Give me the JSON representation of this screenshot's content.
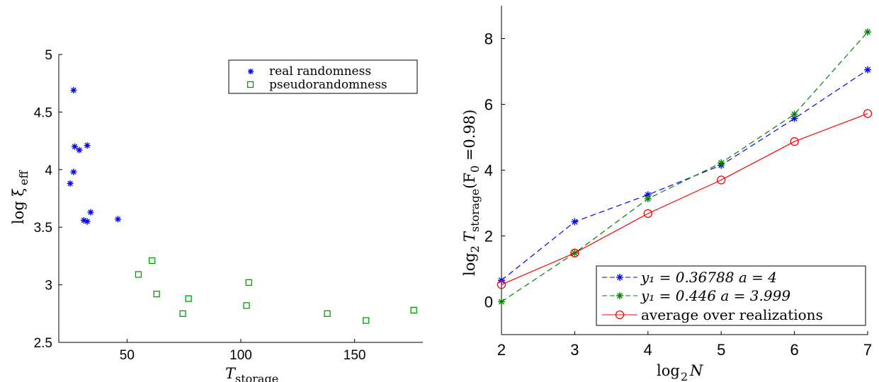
{
  "chart_data": [
    {
      "type": "scatter",
      "xlabel": "T",
      "xlabel_sub": "storage",
      "ylabel": "log ξ",
      "ylabel_sub": "eff",
      "xlim": [
        20,
        180
      ],
      "ylim": [
        2.5,
        5
      ],
      "xticks": [
        50,
        100,
        150
      ],
      "yticks": [
        2.5,
        3,
        3.5,
        4,
        4.5,
        5
      ],
      "ytick_labels": [
        "2.5",
        "3",
        "3.5",
        "4",
        "4.5",
        "5"
      ],
      "grid": false,
      "legend_position": "top-right",
      "series": [
        {
          "name": "real randomness",
          "marker": "asterisk",
          "color": "#0000ff",
          "points": [
            [
              26.5,
              4.69
            ],
            [
              27,
              4.2
            ],
            [
              29,
              4.17
            ],
            [
              32.5,
              4.21
            ],
            [
              26.5,
              3.98
            ],
            [
              25,
              3.88
            ],
            [
              31,
              3.56
            ],
            [
              32.5,
              3.55
            ],
            [
              34,
              3.63
            ],
            [
              46,
              3.57
            ]
          ]
        },
        {
          "name": "pseudorandomness",
          "marker": "square",
          "color": "#00a000",
          "points": [
            [
              55,
              3.09
            ],
            [
              61,
              3.21
            ],
            [
              63,
              2.92
            ],
            [
              74.5,
              2.75
            ],
            [
              77,
              2.88
            ],
            [
              102.5,
              2.82
            ],
            [
              103.5,
              3.02
            ],
            [
              138,
              2.75
            ],
            [
              155,
              2.69
            ],
            [
              176,
              2.78
            ]
          ]
        }
      ]
    },
    {
      "type": "line",
      "xlabel": "log",
      "xlabel_sub": "2",
      "xlabel_var": "N",
      "ylabel": "log₂ T_storage(F₀ =0.98)",
      "ylabel_parts": {
        "a": "log",
        "a_sub": "2",
        "b": "T",
        "b_sub": "storage",
        "c": "(F",
        "c_sub": "0",
        "d": " =0.98)"
      },
      "xlim": [
        2,
        7
      ],
      "ylim": [
        -1,
        9
      ],
      "xticks": [
        2,
        3,
        4,
        5,
        6,
        7
      ],
      "yticks": [
        0,
        2,
        4,
        6,
        8
      ],
      "grid": false,
      "legend_position": "bottom-right",
      "x": [
        2,
        3,
        4,
        5,
        6,
        7
      ],
      "series": [
        {
          "name": "y₁ = 0.36788 a = 4",
          "marker": "asterisk",
          "line": "dashed",
          "color": "#0000ff",
          "values": [
            0.65,
            2.43,
            3.25,
            4.15,
            5.57,
            7.05
          ]
        },
        {
          "name": "y₁ = 0.446 a = 3.999",
          "marker": "asterisk",
          "line": "dashed",
          "color": "#008000",
          "values": [
            0.0,
            1.48,
            3.13,
            4.22,
            5.7,
            8.2
          ]
        },
        {
          "name": "average over realizations",
          "marker": "circle",
          "line": "solid",
          "color": "#ff0000",
          "values": [
            0.52,
            1.48,
            2.68,
            3.7,
            4.87,
            5.72
          ]
        }
      ]
    }
  ]
}
